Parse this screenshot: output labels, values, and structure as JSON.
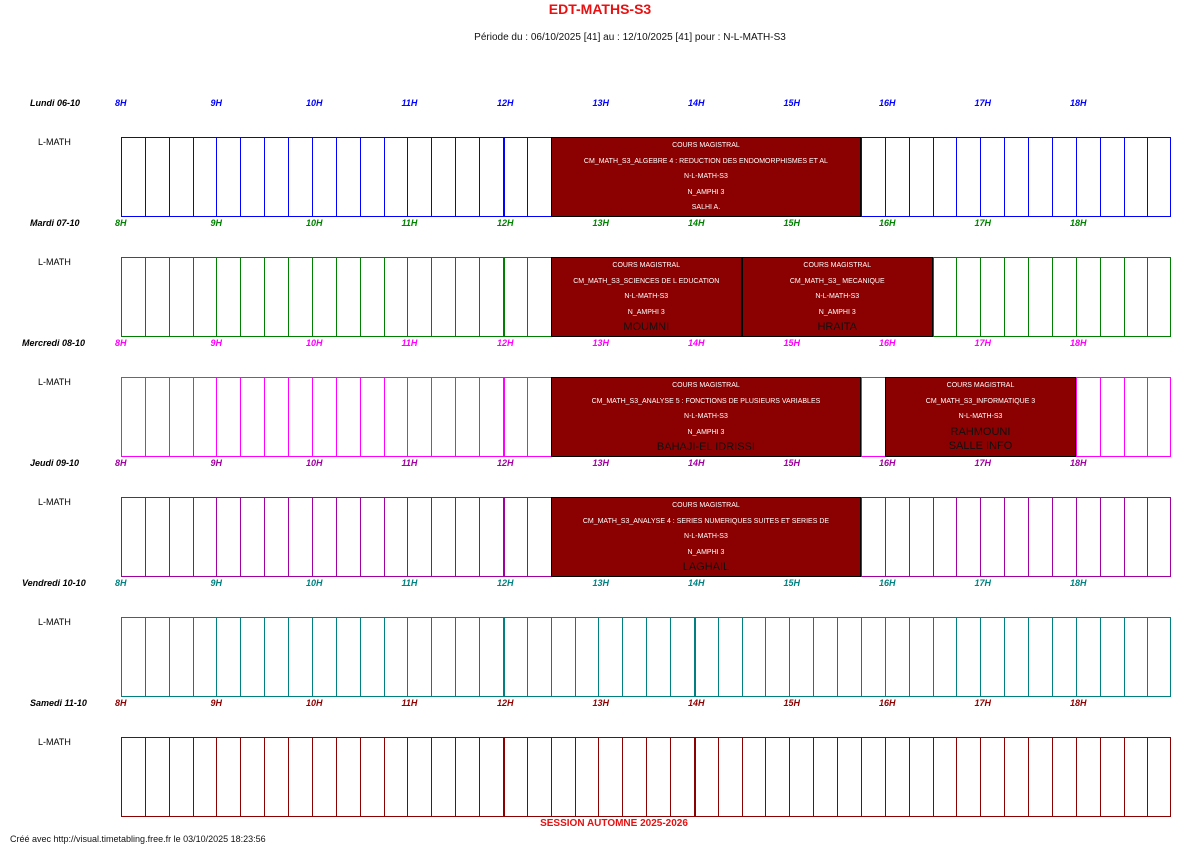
{
  "header": {
    "title": "EDT-MATHS-S3",
    "subtitle": "Période du : 06/10/2025 [41] au : 12/10/2025 [41] pour : N-L-MATH-S3"
  },
  "hours": [
    "8H",
    "9H",
    "10H",
    "11H",
    "12H",
    "13H",
    "14H",
    "15H",
    "16H",
    "17H",
    "18H"
  ],
  "days": [
    {
      "label": "Lundi  06-10",
      "color": "#0000ff",
      "group": "L-MATH",
      "events": [
        {
          "start": 12.5,
          "end": 15.75,
          "lines": [
            "COURS MAGISTRAL",
            "CM_MATH_S3_ALGEBRE 4 : REDUCTION DES ENDOMORPHISMES ET AL",
            "N-L-MATH-S3",
            "N_AMPHI 3",
            "SALHI  A."
          ],
          "big": []
        }
      ]
    },
    {
      "label": "Mardi  07-10",
      "color": "#008000",
      "group": "L-MATH",
      "events": [
        {
          "start": 12.5,
          "end": 14.5,
          "lines": [
            "COURS MAGISTRAL",
            "CM_MATH_S3_SCIENCES DE L EDUCATION",
            "N-L-MATH-S3",
            "N_AMPHI 3"
          ],
          "big": [
            "MOUMNI"
          ]
        },
        {
          "start": 14.5,
          "end": 16.5,
          "lines": [
            "COURS MAGISTRAL",
            "CM_MATH_S3_ MECANIQUE",
            "N-L-MATH-S3",
            "N_AMPHI 3"
          ],
          "big": [
            "HRAITA"
          ]
        }
      ]
    },
    {
      "label": "Mercredi  08-10",
      "color": "#ff00ff",
      "group": "L-MATH",
      "events": [
        {
          "start": 12.5,
          "end": 15.75,
          "lines": [
            "COURS MAGISTRAL",
            "CM_MATH_S3_ANALYSE 5 : FONCTIONS DE PLUSIEURS VARIABLES",
            "N-L-MATH-S3",
            "N_AMPHI 3"
          ],
          "big": [
            "BAHAJI-EL IDRISSI"
          ]
        },
        {
          "start": 16.0,
          "end": 18.0,
          "lines": [
            "COURS MAGISTRAL",
            "CM_MATH_S3_INFORMATIQUE 3",
            "N-L-MATH-S3"
          ],
          "big": [
            "RAHMOUNI",
            "SALLE INFO"
          ]
        }
      ]
    },
    {
      "label": "Jeudi  09-10",
      "color": "#a000a0",
      "group": "L-MATH",
      "events": [
        {
          "start": 12.5,
          "end": 15.75,
          "lines": [
            "COURS MAGISTRAL",
            "CM_MATH_S3_ANALYSE 4 : SERIES NUMERIQUES SUITES ET SERIES DE",
            "N-L-MATH-S3",
            "N_AMPHI 3"
          ],
          "big": [
            "LAGHAIL"
          ]
        }
      ]
    },
    {
      "label": "Vendredi  10-10",
      "color": "#008080",
      "group": "L-MATH",
      "events": []
    },
    {
      "label": "Samedi  11-10",
      "color": "#8b0000",
      "group": "L-MATH",
      "events": []
    }
  ],
  "footer": {
    "session": "SESSION AUTOMNE 2025-2026",
    "credit": "Créé avec http://visual.timetabling.free.fr  le 03/10/2025 18:23:56"
  }
}
